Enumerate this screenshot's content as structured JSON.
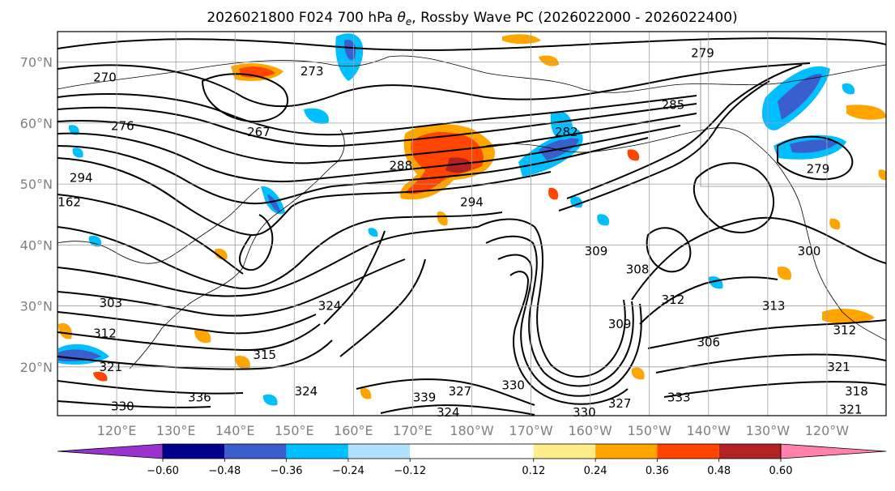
{
  "title": "2026021800 F024 700 hPa θe, Rossby Wave PC (2026022000 - 2026022400)",
  "title_parts": {
    "prefix": "2026021800 F024 700 hPa ",
    "symbol": "θ",
    "subscript": "e",
    "suffix": ", Rossby Wave PC (2026022000 - 2026022400)"
  },
  "map": {
    "region": "North Pacific",
    "lon_range": [
      110,
      250
    ],
    "lat_range": [
      12,
      75
    ],
    "gridlines": true,
    "lat_labels": [
      {
        "lat": 70,
        "text": "70°N"
      },
      {
        "lat": 60,
        "text": "60°N"
      },
      {
        "lat": 50,
        "text": "50°N"
      },
      {
        "lat": 40,
        "text": "40°N"
      },
      {
        "lat": 30,
        "text": "30°N"
      },
      {
        "lat": 20,
        "text": "20°N"
      }
    ],
    "lon_labels": [
      {
        "lon": 120,
        "text": "120°E"
      },
      {
        "lon": 130,
        "text": "130°E"
      },
      {
        "lon": 140,
        "text": "140°E"
      },
      {
        "lon": 150,
        "text": "150°E"
      },
      {
        "lon": 160,
        "text": "160°E"
      },
      {
        "lon": 170,
        "text": "170°E"
      },
      {
        "lon": 180,
        "text": "180°W"
      },
      {
        "lon": 190,
        "text": "170°W"
      },
      {
        "lon": 200,
        "text": "160°W"
      },
      {
        "lon": 210,
        "text": "150°W"
      },
      {
        "lon": 220,
        "text": "140°W"
      },
      {
        "lon": 230,
        "text": "130°W"
      },
      {
        "lon": 240,
        "text": "120°W"
      }
    ],
    "contour_labels": [
      {
        "text": "279",
        "lon": 219,
        "lat": 71.5
      },
      {
        "text": "270",
        "lon": 118,
        "lat": 67.5
      },
      {
        "text": "273",
        "lon": 153,
        "lat": 68.5
      },
      {
        "text": "276",
        "lon": 121,
        "lat": 59.5
      },
      {
        "text": "267",
        "lon": 144,
        "lat": 58.5
      },
      {
        "text": "282",
        "lon": 196,
        "lat": 58.5
      },
      {
        "text": "285",
        "lon": 214,
        "lat": 63
      },
      {
        "text": "288",
        "lon": 168,
        "lat": 53
      },
      {
        "text": "294",
        "lon": 180,
        "lat": 47
      },
      {
        "text": "279",
        "lon": 238.5,
        "lat": 52.5
      },
      {
        "text": "300",
        "lon": 237,
        "lat": 39
      },
      {
        "text": "309",
        "lon": 201,
        "lat": 39
      },
      {
        "text": "308",
        "lon": 208,
        "lat": 36
      },
      {
        "text": "303",
        "lon": 119,
        "lat": 30.5
      },
      {
        "text": "312",
        "lon": 118,
        "lat": 25.5
      },
      {
        "text": "321",
        "lon": 119,
        "lat": 20
      },
      {
        "text": "315",
        "lon": 145,
        "lat": 22
      },
      {
        "text": "324",
        "lon": 156,
        "lat": 30
      },
      {
        "text": "312",
        "lon": 214,
        "lat": 31
      },
      {
        "text": "309",
        "lon": 205,
        "lat": 27
      },
      {
        "text": "306",
        "lon": 220,
        "lat": 24
      },
      {
        "text": "313",
        "lon": 231,
        "lat": 30
      },
      {
        "text": "312",
        "lon": 243,
        "lat": 26
      },
      {
        "text": "321",
        "lon": 242,
        "lat": 20
      },
      {
        "text": "318",
        "lon": 245,
        "lat": 16
      },
      {
        "text": "321",
        "lon": 244,
        "lat": 13
      },
      {
        "text": "330",
        "lon": 187,
        "lat": 17
      },
      {
        "text": "327",
        "lon": 178,
        "lat": 16
      },
      {
        "text": "339",
        "lon": 172,
        "lat": 15
      },
      {
        "text": "324",
        "lon": 176,
        "lat": 12.5
      },
      {
        "text": "333",
        "lon": 215,
        "lat": 15
      },
      {
        "text": "330",
        "lon": 199,
        "lat": 12.5
      },
      {
        "text": "327",
        "lon": 205,
        "lat": 14
      },
      {
        "text": "336",
        "lon": 134,
        "lat": 15
      },
      {
        "text": "324",
        "lon": 152,
        "lat": 16
      },
      {
        "text": "330",
        "lon": 121,
        "lat": 13.5
      },
      {
        "text": "162",
        "lon": 112,
        "lat": 47
      },
      {
        "text": "294",
        "lon": 114,
        "lat": 51
      }
    ]
  },
  "colorbar": {
    "ticks": [
      "−0.60",
      "−0.48",
      "−0.36",
      "−0.24",
      "−0.12",
      "0.12",
      "0.24",
      "0.36",
      "0.48",
      "0.60"
    ],
    "bins": [
      {
        "from": -0.72,
        "to": -0.6,
        "color": "#9a32cd"
      },
      {
        "from": -0.6,
        "to": -0.48,
        "color": "#00008b"
      },
      {
        "from": -0.48,
        "to": -0.36,
        "color": "#3a5fcd"
      },
      {
        "from": -0.36,
        "to": -0.24,
        "color": "#00bfff"
      },
      {
        "from": -0.24,
        "to": -0.12,
        "color": "#b0e2ff"
      },
      {
        "from": -0.12,
        "to": 0.12,
        "color": "#ffffff"
      },
      {
        "from": 0.12,
        "to": 0.24,
        "color": "#ffec8b"
      },
      {
        "from": 0.24,
        "to": 0.36,
        "color": "#ffa500"
      },
      {
        "from": 0.36,
        "to": 0.48,
        "color": "#ff4500"
      },
      {
        "from": 0.48,
        "to": 0.6,
        "color": "#b22222"
      },
      {
        "from": 0.6,
        "to": 0.72,
        "color": "#ff82ab"
      }
    ],
    "extend": "both"
  }
}
